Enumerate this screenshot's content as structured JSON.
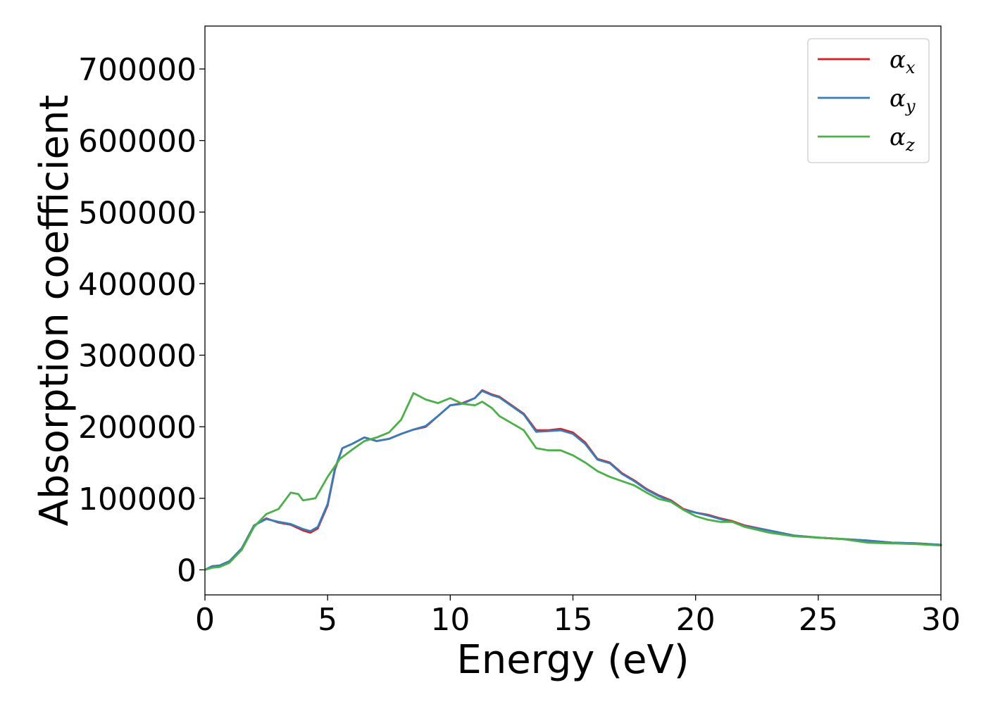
{
  "chart_data": {
    "type": "line",
    "xlabel": "Energy (eV)",
    "ylabel": "Absorption coefficient",
    "xlim": [
      0,
      30
    ],
    "ylim": [
      -35000,
      760000
    ],
    "x_ticks": [
      0,
      5,
      10,
      15,
      20,
      25,
      30
    ],
    "x_tick_labels": [
      "0",
      "5",
      "10",
      "15",
      "20",
      "25",
      "30"
    ],
    "y_ticks": [
      0,
      100000,
      200000,
      300000,
      400000,
      500000,
      600000,
      700000
    ],
    "y_tick_labels": [
      "0",
      "100000",
      "200000",
      "300000",
      "400000",
      "500000",
      "600000",
      "700000"
    ],
    "grid": false,
    "legend_position": "top-right",
    "series": [
      {
        "name": "αx",
        "symbol": "α",
        "subscript": "x",
        "color": "#e41a1c",
        "points": [
          [
            0,
            0
          ],
          [
            0.3,
            5000
          ],
          [
            0.6,
            6000
          ],
          [
            1,
            12000
          ],
          [
            1.5,
            30000
          ],
          [
            2,
            62000
          ],
          [
            2.5,
            72000
          ],
          [
            3,
            66000
          ],
          [
            3.5,
            63000
          ],
          [
            4,
            55000
          ],
          [
            4.3,
            52000
          ],
          [
            4.6,
            58000
          ],
          [
            5,
            90000
          ],
          [
            5.3,
            140000
          ],
          [
            5.6,
            170000
          ],
          [
            6,
            176000
          ],
          [
            6.5,
            185000
          ],
          [
            7,
            180000
          ],
          [
            7.5,
            183000
          ],
          [
            8,
            190000
          ],
          [
            8.5,
            196000
          ],
          [
            9,
            200000
          ],
          [
            9.5,
            215000
          ],
          [
            10,
            230000
          ],
          [
            10.5,
            233000
          ],
          [
            11,
            240000
          ],
          [
            11.3,
            251000
          ],
          [
            11.7,
            245000
          ],
          [
            12,
            242000
          ],
          [
            12.5,
            230000
          ],
          [
            13,
            218000
          ],
          [
            13.5,
            195000
          ],
          [
            14,
            195000
          ],
          [
            14.5,
            197000
          ],
          [
            15,
            192000
          ],
          [
            15.5,
            178000
          ],
          [
            16,
            155000
          ],
          [
            16.5,
            150000
          ],
          [
            17,
            135000
          ],
          [
            17.5,
            125000
          ],
          [
            18,
            113000
          ],
          [
            18.5,
            104000
          ],
          [
            19,
            97000
          ],
          [
            19.5,
            85000
          ],
          [
            20,
            80000
          ],
          [
            20.5,
            77000
          ],
          [
            21,
            72000
          ],
          [
            21.5,
            68000
          ],
          [
            22,
            62000
          ],
          [
            23,
            55000
          ],
          [
            24,
            48000
          ],
          [
            25,
            45000
          ],
          [
            26,
            43000
          ],
          [
            27,
            41000
          ],
          [
            28,
            38000
          ],
          [
            29,
            37000
          ],
          [
            30,
            35000
          ]
        ]
      },
      {
        "name": "αy",
        "symbol": "α",
        "subscript": "y",
        "color": "#377eb8",
        "points": [
          [
            0,
            0
          ],
          [
            0.3,
            5000
          ],
          [
            0.6,
            6000
          ],
          [
            1,
            12000
          ],
          [
            1.5,
            30000
          ],
          [
            2,
            62000
          ],
          [
            2.5,
            71000
          ],
          [
            3,
            67000
          ],
          [
            3.5,
            64000
          ],
          [
            4,
            57000
          ],
          [
            4.3,
            54000
          ],
          [
            4.6,
            60000
          ],
          [
            5,
            92000
          ],
          [
            5.3,
            142000
          ],
          [
            5.6,
            170000
          ],
          [
            6,
            176000
          ],
          [
            6.5,
            185000
          ],
          [
            7,
            180000
          ],
          [
            7.5,
            183000
          ],
          [
            8,
            190000
          ],
          [
            8.5,
            196000
          ],
          [
            9,
            201000
          ],
          [
            9.5,
            215000
          ],
          [
            10,
            230000
          ],
          [
            10.5,
            232000
          ],
          [
            11,
            240000
          ],
          [
            11.3,
            250000
          ],
          [
            11.7,
            244000
          ],
          [
            12,
            241000
          ],
          [
            12.5,
            229000
          ],
          [
            13,
            217000
          ],
          [
            13.5,
            193000
          ],
          [
            14,
            194000
          ],
          [
            14.5,
            195000
          ],
          [
            15,
            190000
          ],
          [
            15.5,
            176000
          ],
          [
            16,
            154000
          ],
          [
            16.5,
            149000
          ],
          [
            17,
            134000
          ],
          [
            17.5,
            124000
          ],
          [
            18,
            112000
          ],
          [
            18.5,
            103000
          ],
          [
            19,
            96000
          ],
          [
            19.5,
            84000
          ],
          [
            20,
            80000
          ],
          [
            20.5,
            76000
          ],
          [
            21,
            71000
          ],
          [
            21.5,
            67000
          ],
          [
            22,
            61000
          ],
          [
            23,
            55000
          ],
          [
            24,
            48000
          ],
          [
            25,
            45000
          ],
          [
            26,
            43000
          ],
          [
            27,
            41000
          ],
          [
            28,
            38000
          ],
          [
            29,
            37000
          ],
          [
            30,
            35000
          ]
        ]
      },
      {
        "name": "αz",
        "symbol": "α",
        "subscript": "z",
        "color": "#4daf4a",
        "points": [
          [
            0,
            0
          ],
          [
            0.3,
            3000
          ],
          [
            0.6,
            4000
          ],
          [
            1,
            10000
          ],
          [
            1.5,
            28000
          ],
          [
            2,
            60000
          ],
          [
            2.5,
            78000
          ],
          [
            3,
            85000
          ],
          [
            3.5,
            108000
          ],
          [
            3.8,
            106000
          ],
          [
            4,
            97000
          ],
          [
            4.5,
            100000
          ],
          [
            5,
            130000
          ],
          [
            5.5,
            155000
          ],
          [
            6,
            168000
          ],
          [
            6.5,
            180000
          ],
          [
            7,
            185000
          ],
          [
            7.5,
            192000
          ],
          [
            8,
            210000
          ],
          [
            8.5,
            247000
          ],
          [
            9,
            238000
          ],
          [
            9.5,
            233000
          ],
          [
            10,
            240000
          ],
          [
            10.5,
            232000
          ],
          [
            11,
            230000
          ],
          [
            11.3,
            235000
          ],
          [
            11.7,
            226000
          ],
          [
            12,
            215000
          ],
          [
            12.5,
            205000
          ],
          [
            13,
            195000
          ],
          [
            13.5,
            170000
          ],
          [
            14,
            167000
          ],
          [
            14.5,
            167000
          ],
          [
            15,
            160000
          ],
          [
            15.5,
            150000
          ],
          [
            16,
            138000
          ],
          [
            16.5,
            130000
          ],
          [
            17,
            124000
          ],
          [
            17.5,
            118000
          ],
          [
            18,
            108000
          ],
          [
            18.5,
            99000
          ],
          [
            19,
            95000
          ],
          [
            19.5,
            84000
          ],
          [
            20,
            75000
          ],
          [
            20.5,
            70000
          ],
          [
            21,
            67000
          ],
          [
            21.5,
            67000
          ],
          [
            22,
            60000
          ],
          [
            23,
            52000
          ],
          [
            24,
            47000
          ],
          [
            25,
            45000
          ],
          [
            26,
            43000
          ],
          [
            27,
            38000
          ],
          [
            28,
            37000
          ],
          [
            29,
            36000
          ],
          [
            30,
            34000
          ]
        ]
      }
    ]
  }
}
